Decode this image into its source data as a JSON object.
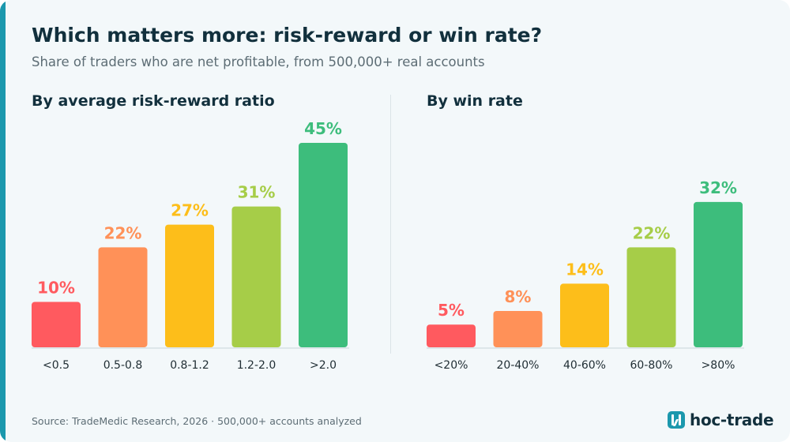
{
  "title": "Which matters more: risk-reward or win rate?",
  "subtitle": "Share of traders who are net profitable, from 500,000+ real accounts",
  "source": "Source: TradeMedic Research, 2026 · 500,000+ accounts analyzed",
  "brand": {
    "name": "hoc-trade",
    "icon": "logo-icon",
    "color": "#1b98ad"
  },
  "colors": {
    "accent": "#1b98ad",
    "title": "#12303d",
    "muted": "#5d6d75",
    "baseline": "#dde6ea"
  },
  "chart_data": [
    {
      "type": "bar",
      "title": "By average risk-reward ratio",
      "categories": [
        "<0.5",
        "0.5-0.8",
        "0.8-1.2",
        "1.2-2.0",
        ">2.0"
      ],
      "values": [
        10,
        22,
        27,
        31,
        45
      ],
      "value_labels": [
        "10%",
        "22%",
        "27%",
        "31%",
        "45%"
      ],
      "colors": [
        "#ff5a5f",
        "#ff9158",
        "#fdbe1a",
        "#a6cd48",
        "#3dbd7c"
      ],
      "unit": "%",
      "ylim": [
        0,
        45
      ],
      "grid": false,
      "legend": "none"
    },
    {
      "type": "bar",
      "title": "By win rate",
      "categories": [
        "<20%",
        "20-40%",
        "40-60%",
        "60-80%",
        ">80%"
      ],
      "values": [
        5,
        8,
        14,
        22,
        32
      ],
      "value_labels": [
        "5%",
        "8%",
        "14%",
        "22%",
        "32%"
      ],
      "colors": [
        "#ff5a5f",
        "#ff9158",
        "#fdbe1a",
        "#a6cd48",
        "#3dbd7c"
      ],
      "unit": "%",
      "ylim": [
        0,
        45
      ],
      "grid": false,
      "legend": "none"
    }
  ]
}
